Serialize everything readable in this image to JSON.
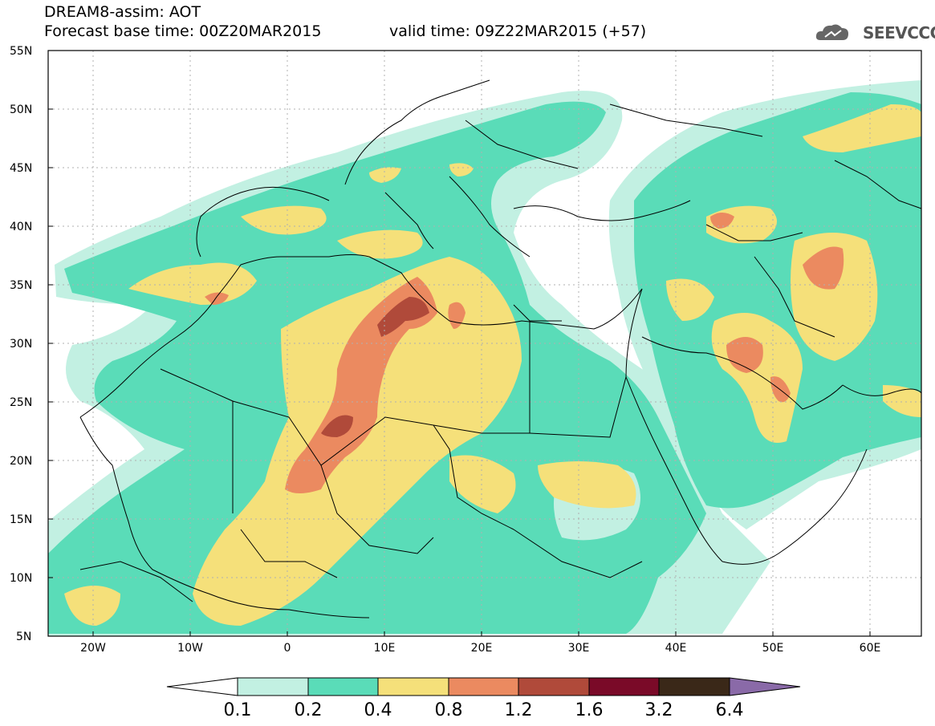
{
  "header": {
    "line1": "DREAM8-assim: AOT",
    "line2": "Forecast base time: 00Z20MAR2015",
    "valid": "valid time: 09Z22MAR2015 (+57)"
  },
  "logo": {
    "text": "SEEVCCC",
    "icon": "cloud-icon"
  },
  "map": {
    "lon_labels": [
      "20W",
      "10W",
      "0",
      "10E",
      "20E",
      "30E",
      "40E",
      "50E",
      "60E"
    ],
    "lat_labels": [
      "55N",
      "50N",
      "45N",
      "40N",
      "35N",
      "30N",
      "25N",
      "20N",
      "15N",
      "10N",
      "5N"
    ],
    "lon_range": [
      -25,
      65
    ],
    "lat_range": [
      5,
      55
    ]
  },
  "colorbar": {
    "labels": [
      "0.1",
      "0.2",
      "0.4",
      "0.8",
      "1.2",
      "1.6",
      "3.2",
      "6.4"
    ],
    "colors": [
      "#c2f0e2",
      "#5adcb8",
      "#f5e07a",
      "#eb8a60",
      "#b04a3a",
      "#7a0a28",
      "#3a2818",
      "#8a6aa8"
    ],
    "under_color": "#ffffff"
  },
  "palette": {
    "c01": "#c2f0e2",
    "c02": "#5adcb8",
    "c04": "#f5e07a",
    "c08": "#eb8a60",
    "c12": "#b04a3a"
  }
}
